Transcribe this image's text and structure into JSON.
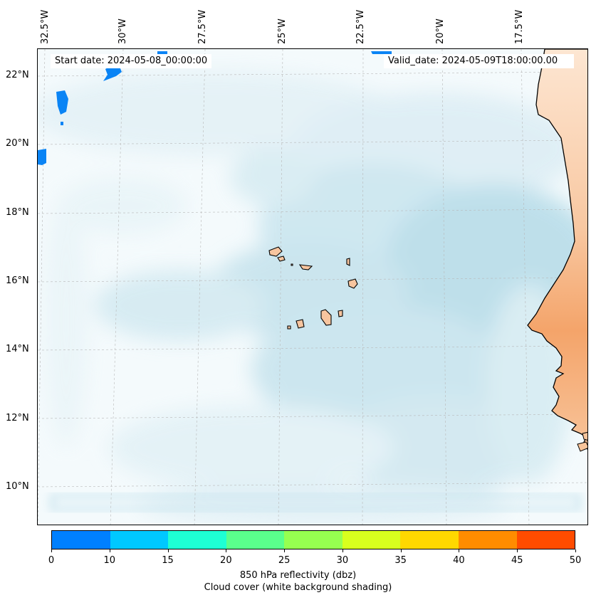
{
  "map": {
    "lon_labels": [
      "32.5°W",
      "30°W",
      "27.5°W",
      "25°W",
      "22.5°W",
      "20°W",
      "17.5°W"
    ],
    "lat_labels": [
      "22°N",
      "20°N",
      "18°N",
      "16°N",
      "14°N",
      "12°N",
      "10°N"
    ],
    "start_date": "Start date: 2024-05-08_00:00:00",
    "valid_date": "Valid_date: 2024-05-09T18:00:00.00"
  },
  "colorbar": {
    "ticks": [
      "0",
      "10",
      "15",
      "20",
      "25",
      "30",
      "35",
      "40",
      "45",
      "50"
    ],
    "colors": [
      "#0080ff",
      "#00c8ff",
      "#1effd4",
      "#5aff8c",
      "#96ff50",
      "#d8ff1e",
      "#ffd800",
      "#ff8c00",
      "#ff4c00"
    ],
    "label_line1": "850 hPa reflectivity (dbz)",
    "label_line2": "Cloud cover (white background shading)"
  },
  "colors": {
    "cloud": "#a9d6e5",
    "land_light": "#fde3cc",
    "land_dark": "#f4a46a",
    "echo": "#0a84f5"
  }
}
